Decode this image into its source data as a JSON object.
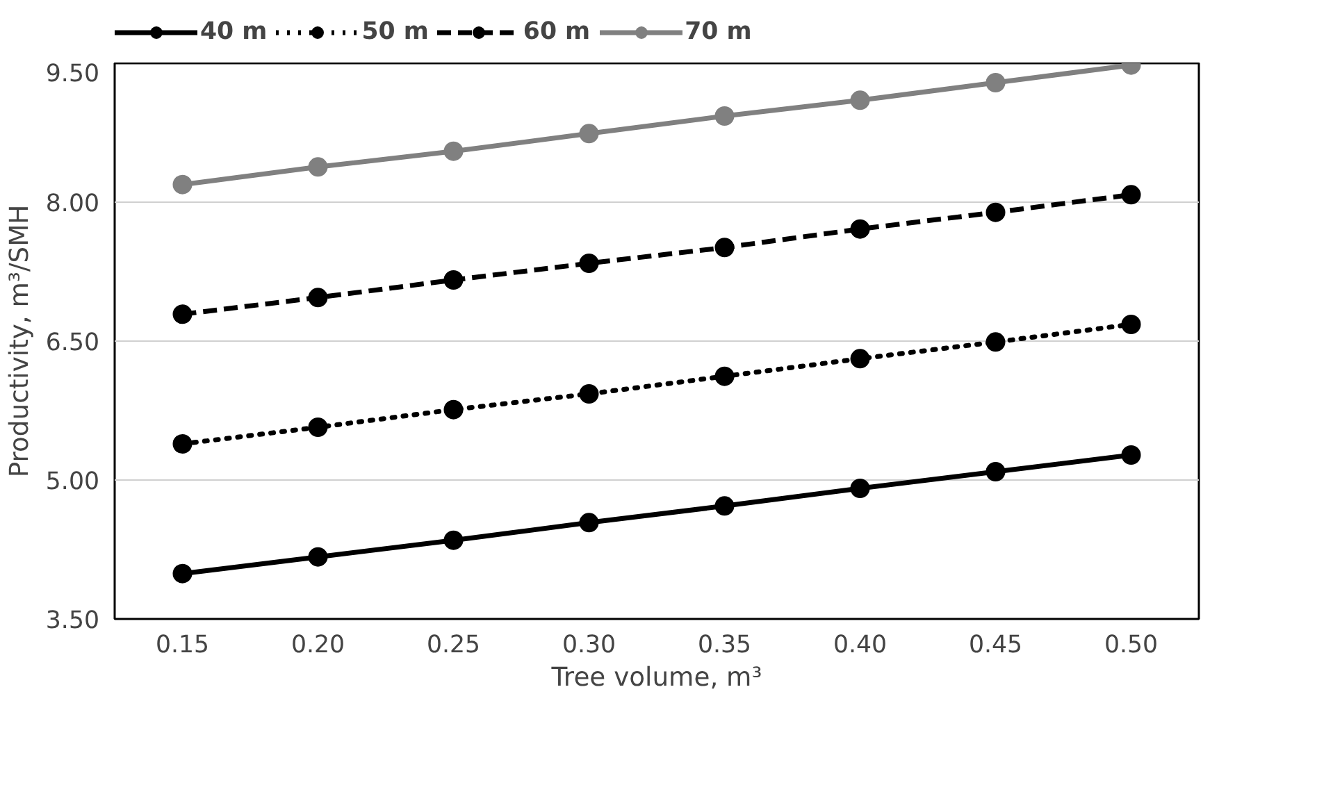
{
  "chart_data": {
    "type": "line",
    "xlabel": "Tree volume, m³",
    "ylabel": "Productivity, m³/SMH",
    "x": [
      0.15,
      0.2,
      0.25,
      0.3,
      0.35,
      0.4,
      0.45,
      0.5
    ],
    "xlim": [
      0.125,
      0.525
    ],
    "xticks": [
      {
        "value": 0.15,
        "label": "0.15"
      },
      {
        "value": 0.2,
        "label": "0.20"
      },
      {
        "value": 0.25,
        "label": "0.25"
      },
      {
        "value": 0.3,
        "label": "0.30"
      },
      {
        "value": 0.35,
        "label": "0.35"
      },
      {
        "value": 0.4,
        "label": "0.40"
      },
      {
        "value": 0.45,
        "label": "0.45"
      },
      {
        "value": 0.5,
        "label": "0.50"
      }
    ],
    "ylim": [
      3.5,
      9.5
    ],
    "yticks": [
      {
        "value": 3.5,
        "label": "3.50"
      },
      {
        "value": 5.0,
        "label": "5.00"
      },
      {
        "value": 6.5,
        "label": "6.50"
      },
      {
        "value": 8.0,
        "label": "8.00"
      },
      {
        "value": 9.5,
        "label": "9.50"
      }
    ],
    "grid": "y",
    "legend": "top",
    "marker": "circle",
    "series": [
      {
        "name": "40 m",
        "color": "#000000",
        "line_style": "solid",
        "values": [
          3.99,
          4.17,
          4.35,
          4.54,
          4.72,
          4.91,
          5.09,
          5.27
        ]
      },
      {
        "name": "50 m",
        "color": "#000000",
        "line_style": "dotted",
        "values": [
          5.39,
          5.57,
          5.76,
          5.93,
          6.12,
          6.31,
          6.49,
          6.68
        ]
      },
      {
        "name": "60 m",
        "color": "#000000",
        "line_style": "dashed",
        "values": [
          6.79,
          6.97,
          7.16,
          7.34,
          7.51,
          7.71,
          7.89,
          8.08
        ]
      },
      {
        "name": "70 m",
        "color": "#808080",
        "line_style": "solid",
        "values": [
          8.19,
          8.38,
          8.55,
          8.74,
          8.93,
          9.1,
          9.29,
          9.48
        ]
      }
    ]
  }
}
